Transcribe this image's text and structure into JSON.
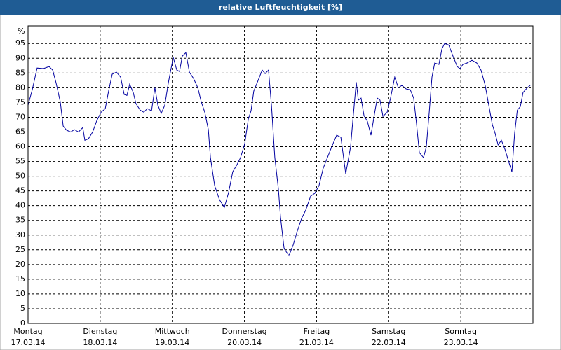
{
  "chart_data": {
    "type": "line",
    "title": "relative Luftfeuchtigkeit [%]",
    "y_label": "%",
    "x": [
      0,
      1.4,
      3,
      5.1,
      7,
      8.2,
      9.3,
      10.7,
      11.7,
      12.8,
      14.2,
      15.4,
      16.8,
      18.2,
      18.9,
      20.1,
      21.5,
      22.9,
      24.3,
      25.7,
      26.8,
      28,
      29.4,
      30.8,
      32,
      32.9,
      33.8,
      35,
      35.9,
      37.3,
      38.5,
      39.7,
      41.1,
      42.2,
      43.2,
      44.3,
      45.5,
      46.7,
      48.3,
      49.5,
      50.4,
      51.3,
      52.5,
      53.7,
      55.1,
      56.5,
      57.6,
      58.8,
      60,
      60.7,
      62.1,
      63.7,
      65.3,
      66.7,
      68.1,
      69.5,
      70.7,
      72.1,
      73.3,
      74.2,
      75.1,
      76.5,
      77.9,
      78.9,
      80,
      81,
      82.1,
      83.3,
      84,
      85.2,
      86.8,
      88.2,
      89.6,
      91,
      92.4,
      94,
      95.4,
      96.8,
      98.2,
      99.6,
      101,
      102.7,
      104.1,
      105.7,
      107.3,
      108,
      109.2,
      109.9,
      110.8,
      111.8,
      112.9,
      114.1,
      115.3,
      116.2,
      117.1,
      118.1,
      119.5,
      120.6,
      122,
      123.2,
      124.4,
      125.8,
      127.2,
      128.3,
      129.3,
      130.2,
      131.6,
      132.5,
      133.5,
      134.4,
      135.3,
      136.7,
      137.7,
      138.6,
      140,
      141.4,
      142.8,
      143.7,
      144.7,
      146.1,
      147.7,
      149.3,
      150.7,
      152.1,
      153.3,
      154.5,
      155.4,
      156.4,
      157.5,
      158.7,
      160.1,
      161,
      161.9,
      162.8,
      163.8,
      164.7,
      166.1,
      167.1
    ],
    "values": [
      74.1,
      79.3,
      86.7,
      86.5,
      87.2,
      86,
      81.7,
      75.3,
      67,
      65.6,
      65,
      65.8,
      65,
      66.5,
      62.2,
      62.7,
      65,
      68.9,
      71.7,
      72.9,
      78.9,
      84.6,
      85.3,
      83.6,
      77.7,
      77.4,
      81.2,
      78.4,
      74.6,
      72.4,
      71.7,
      72.9,
      72.2,
      80,
      74.1,
      71.3,
      74.1,
      81.7,
      90.3,
      86,
      85.5,
      90.7,
      91.9,
      85.3,
      83.1,
      80,
      75.3,
      71.7,
      65.8,
      56.3,
      46.8,
      42,
      39.4,
      44.4,
      51.5,
      53.9,
      56.3,
      61,
      69.4,
      72.2,
      78.9,
      82.4,
      86,
      84.8,
      86,
      74.1,
      56.3,
      45.6,
      36.1,
      25.4,
      23,
      26.6,
      31.4,
      35.6,
      38.5,
      43.2,
      44.2,
      46.8,
      52.7,
      56.3,
      59.9,
      63.9,
      63.2,
      50.8,
      59.9,
      68.2,
      81.9,
      75.8,
      76.5,
      70.5,
      68.6,
      63.9,
      71.3,
      76.5,
      75.8,
      70.3,
      71.7,
      76.5,
      83.6,
      80,
      80.8,
      79.6,
      79.3,
      76.5,
      67.5,
      58,
      56.3,
      59.9,
      71.7,
      83.6,
      88.4,
      87.9,
      93.1,
      95,
      94.5,
      90.7,
      87.2,
      86.5,
      87.9,
      88.4,
      89.3,
      88.4,
      86,
      80.8,
      74.1,
      67.5,
      64.6,
      60.6,
      62.2,
      59.1,
      54.4,
      51.5,
      64.6,
      72.4,
      73.6,
      78.4,
      80,
      80.8
    ],
    "color": "#0000a0",
    "xlim": [
      0,
      168
    ],
    "xticks": [
      {
        "value": 0,
        "label": [
          "Montag",
          "17.03.14"
        ]
      },
      {
        "value": 24,
        "label": [
          "Dienstag",
          "18.03.14"
        ]
      },
      {
        "value": 48,
        "label": [
          "Mittwoch",
          "19.03.14"
        ]
      },
      {
        "value": 72,
        "label": [
          "Donnerstag",
          "20.03.14"
        ]
      },
      {
        "value": 96,
        "label": [
          "Freitag",
          "21.03.14"
        ]
      },
      {
        "value": 120,
        "label": [
          "Samstag",
          "22.03.14"
        ]
      },
      {
        "value": 144,
        "label": [
          "Sonntag",
          "23.03.14"
        ]
      }
    ],
    "ylim": [
      0,
      101
    ],
    "yticks": [
      0,
      5,
      10,
      15,
      20,
      25,
      30,
      35,
      40,
      45,
      50,
      55,
      60,
      65,
      70,
      75,
      80,
      85,
      90,
      95
    ],
    "grid": true
  }
}
